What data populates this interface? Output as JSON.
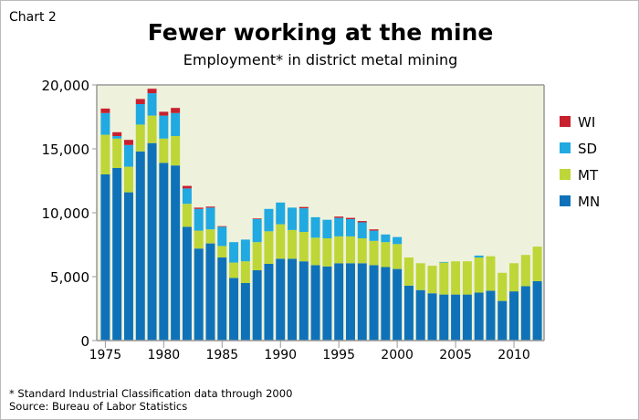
{
  "header": {
    "chart_label": "Chart 2",
    "title": "Fewer working at the mine",
    "subtitle": "Employment* in district metal mining"
  },
  "footer": {
    "note": "* Standard Industrial Classification data through 2000",
    "source": "Source: Bureau of Labor Statistics"
  },
  "chart_data": {
    "type": "bar",
    "stacked": true,
    "title": "Fewer working at the mine",
    "subtitle": "Employment* in district metal mining",
    "xlabel": "",
    "ylabel": "",
    "ylim": [
      0,
      20000
    ],
    "yticks": [
      0,
      5000,
      10000,
      15000,
      20000
    ],
    "ytick_labels": [
      "0",
      "5,000",
      "10,000",
      "15,000",
      "20,000"
    ],
    "xtick_labels": [
      "1975",
      "1980",
      "1985",
      "1990",
      "1995",
      "2000",
      "2005",
      "2010"
    ],
    "legend_position": "right",
    "grid": false,
    "background_color": "#eef2dc",
    "categories": [
      1975,
      1976,
      1977,
      1978,
      1979,
      1980,
      1981,
      1982,
      1983,
      1984,
      1985,
      1986,
      1987,
      1988,
      1989,
      1990,
      1991,
      1992,
      1993,
      1994,
      1995,
      1996,
      1997,
      1998,
      1999,
      2000,
      2001,
      2002,
      2003,
      2004,
      2005,
      2006,
      2007,
      2008,
      2009,
      2010,
      2011,
      2012
    ],
    "series": [
      {
        "name": "MN",
        "color": "#0f72b9",
        "values": [
          13000,
          13500,
          11600,
          14800,
          15450,
          13900,
          13700,
          8900,
          7200,
          7600,
          6500,
          4900,
          4500,
          5500,
          6000,
          6400,
          6400,
          6200,
          5900,
          5800,
          6050,
          6050,
          6050,
          5900,
          5750,
          5600,
          4300,
          3950,
          3700,
          3600,
          3600,
          3600,
          3750,
          3900,
          3100,
          3850,
          4250,
          4650
        ]
      },
      {
        "name": "MT",
        "color": "#bed637",
        "values": [
          3100,
          2300,
          2000,
          2100,
          2150,
          1900,
          2300,
          1800,
          1400,
          1100,
          900,
          1200,
          1700,
          2200,
          2550,
          2700,
          2250,
          2300,
          2150,
          2200,
          2100,
          2100,
          1950,
          1900,
          1950,
          1950,
          2200,
          2100,
          2150,
          2500,
          2600,
          2600,
          2750,
          2700,
          2200,
          2200,
          2450,
          2700
        ]
      },
      {
        "name": "SD",
        "color": "#21a9e1",
        "values": [
          1700,
          200,
          1700,
          1600,
          1750,
          1800,
          1800,
          1200,
          1700,
          1700,
          1500,
          1600,
          1700,
          1800,
          1750,
          1700,
          1750,
          1850,
          1600,
          1450,
          1450,
          1350,
          1250,
          800,
          600,
          550,
          0,
          0,
          0,
          50,
          0,
          0,
          150,
          0,
          0,
          0,
          0,
          0
        ]
      },
      {
        "name": "WI",
        "color": "#c8202f",
        "values": [
          350,
          300,
          400,
          400,
          350,
          300,
          400,
          200,
          100,
          80,
          50,
          0,
          0,
          50,
          0,
          0,
          0,
          100,
          0,
          0,
          100,
          100,
          100,
          100,
          0,
          0,
          0,
          0,
          0,
          0,
          0,
          0,
          0,
          0,
          0,
          0,
          0,
          0
        ]
      }
    ]
  }
}
